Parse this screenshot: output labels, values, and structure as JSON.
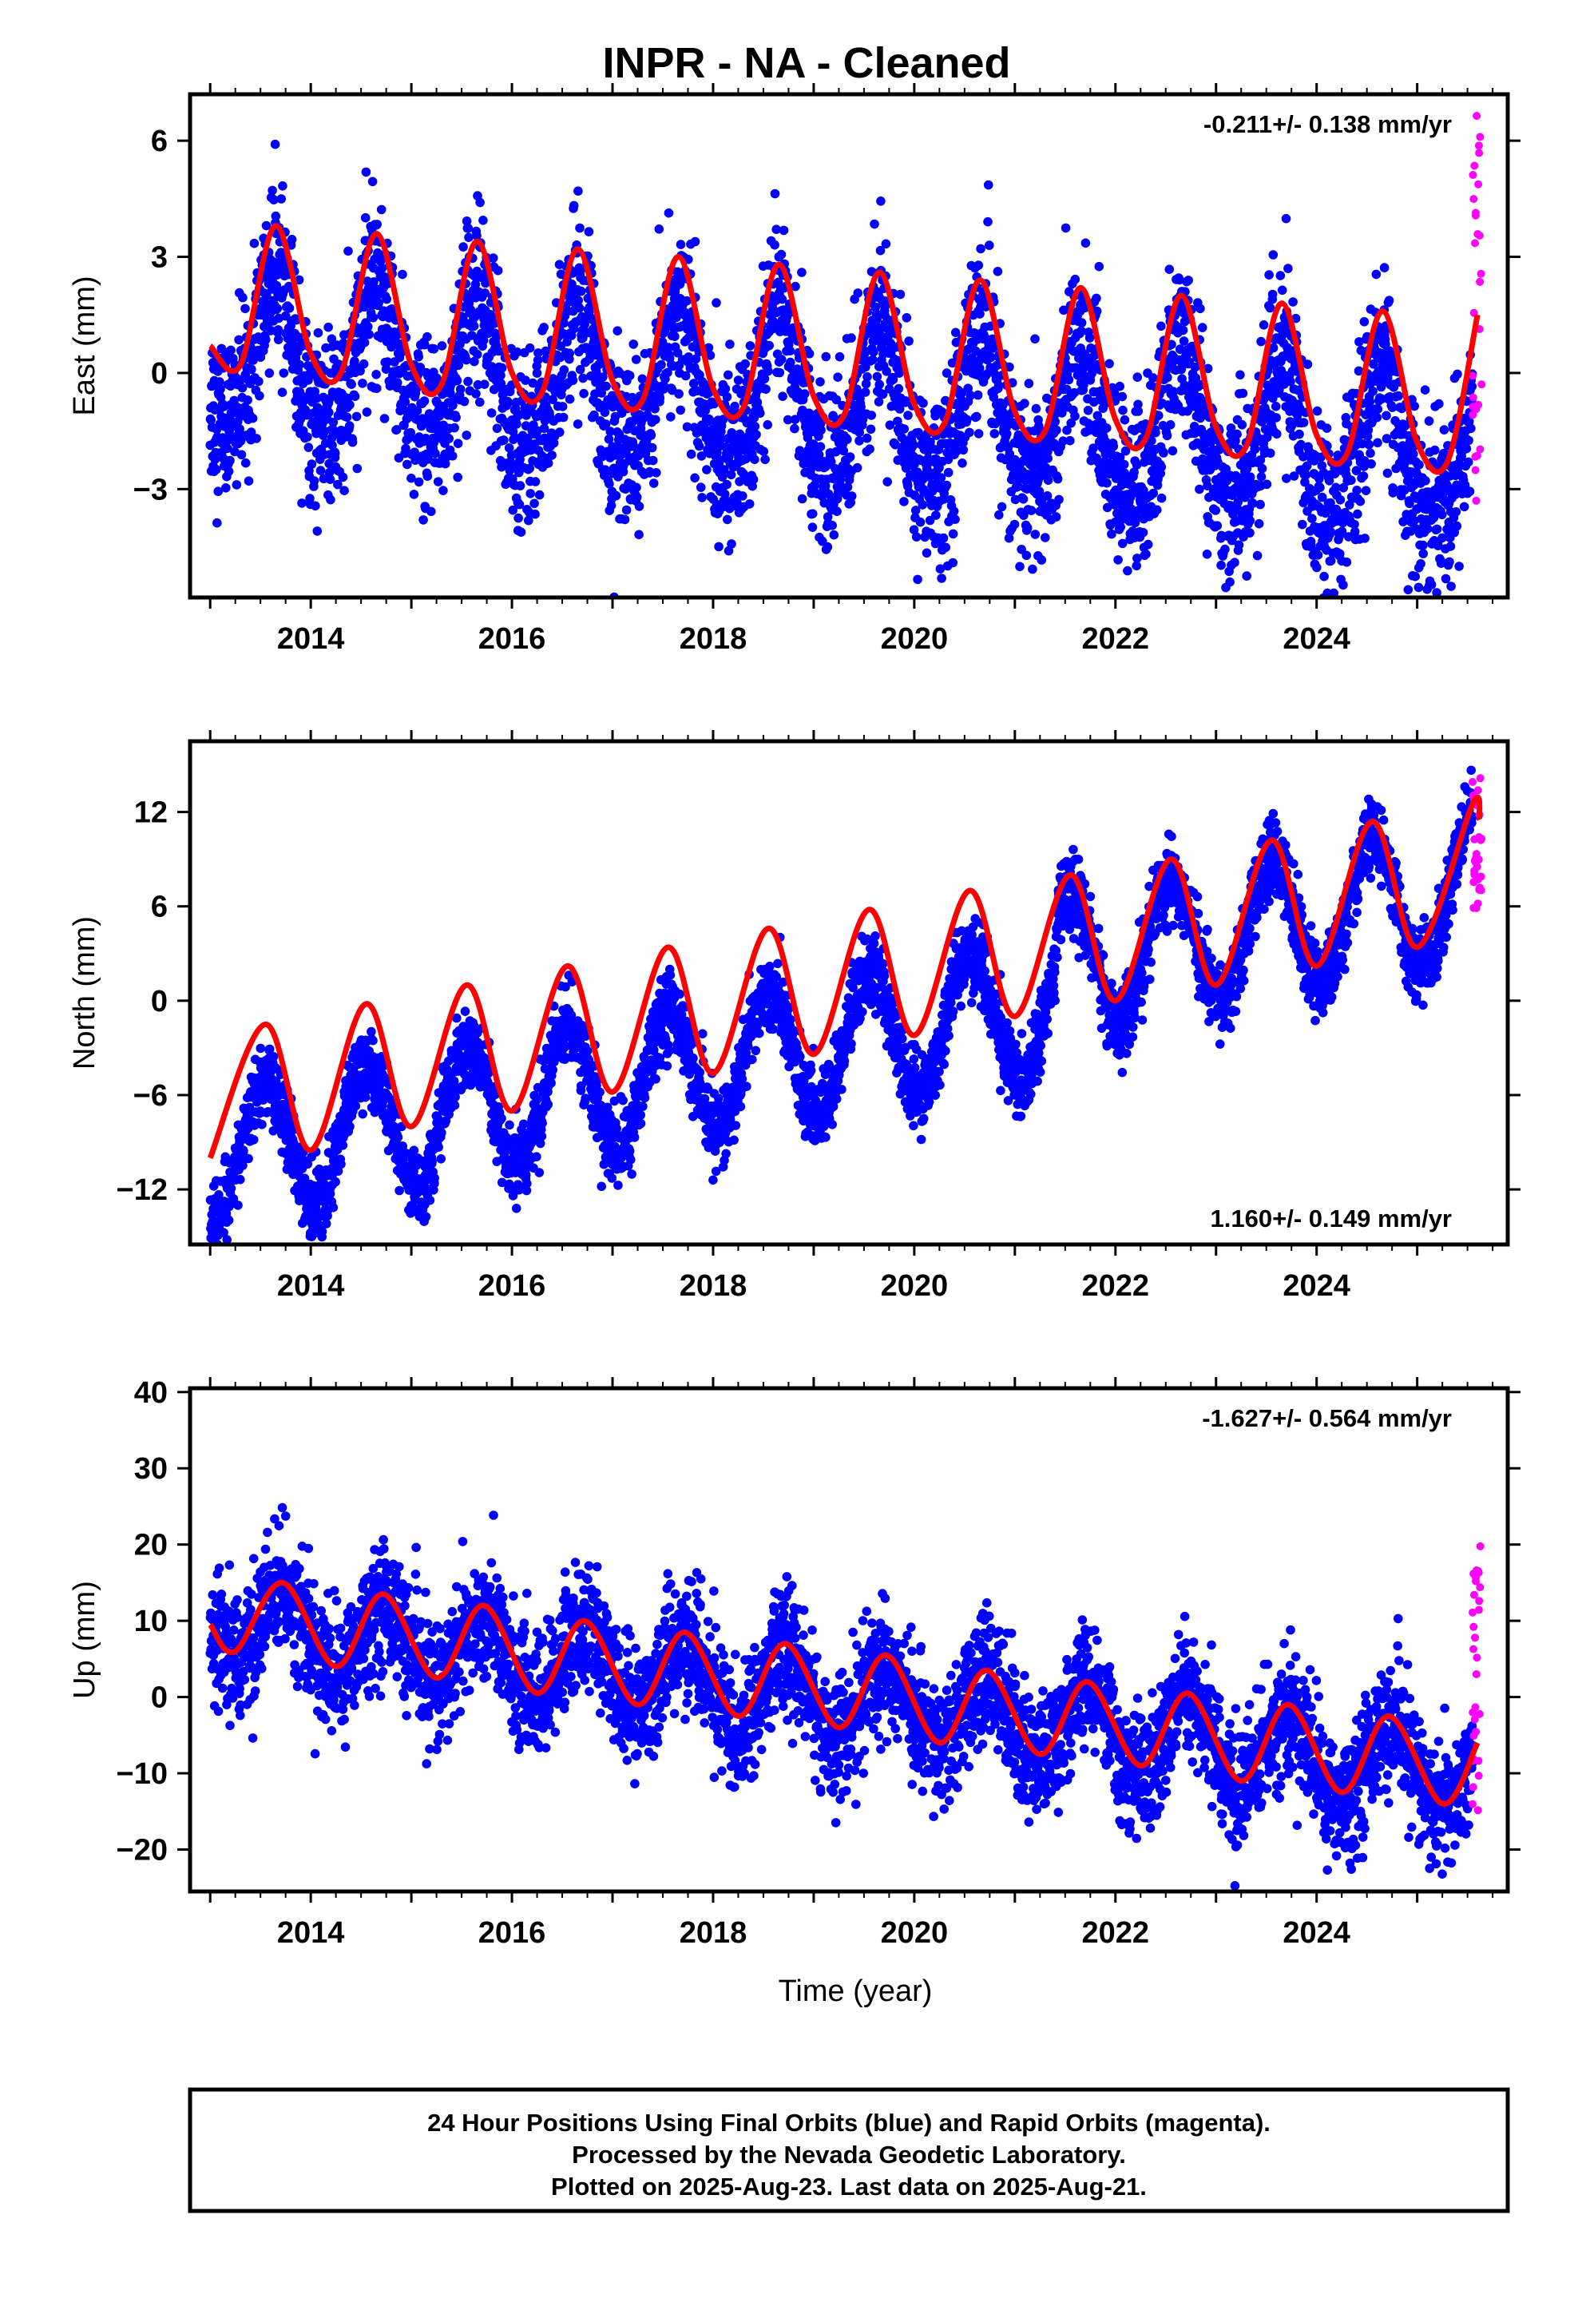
{
  "title": "INPR  - NA - Cleaned",
  "x_label": "Time (year)",
  "colors": {
    "final_orbits": "#0000ff",
    "rapid_orbits": "#ff00ff",
    "model": "#ff0000",
    "frame": "#000000"
  },
  "footer": {
    "line1": "24 Hour Positions Using Final Orbits (blue) and Rapid Orbits (magenta).",
    "line2": "Processed by the Nevada Geodetic Laboratory.",
    "line3": "Plotted on 2025-Aug-23. Last data on 2025-Aug-21."
  },
  "chart_data": [
    {
      "type": "scatter",
      "component": "East",
      "ylabel": "East (mm)",
      "xlim": [
        2012.8,
        2025.9
      ],
      "ylim": [
        -5.8,
        7.2
      ],
      "x_ticks": [
        2014,
        2016,
        2018,
        2020,
        2022,
        2024
      ],
      "y_ticks": [
        -3,
        0,
        3,
        6
      ],
      "rate_text": "-0.211+/- 0.138 mm/yr",
      "rate_position": "top-right",
      "series": [
        {
          "kind": "final_orbits",
          "x_range": [
            2013.0,
            2025.55
          ],
          "model": {
            "offset": 0.5,
            "rate": -0.211,
            "annual_amp": 1.9,
            "annual_peak": 2013.65,
            "semiannual_amp": 0.35
          },
          "scatter_std": 1.1
        },
        {
          "kind": "rapid_orbits",
          "x_range": [
            2025.55,
            2025.64
          ],
          "y_range": [
            -3.6,
            6.8
          ]
        }
      ],
      "model_line": {
        "x": [
          2013.0,
          2013.3,
          2013.65,
          2014.0,
          2014.3,
          2014.65,
          2015.0,
          2015.3,
          2015.65,
          2016.0,
          2016.3,
          2016.65,
          2017.0,
          2017.3,
          2017.65,
          2018.0,
          2018.3,
          2018.65,
          2019.0,
          2019.3,
          2019.65,
          2020.0,
          2020.3,
          2020.65,
          2021.0,
          2021.3,
          2021.65,
          2022.0,
          2022.3,
          2022.65,
          2023.0,
          2023.3,
          2023.65,
          2024.0,
          2024.3,
          2024.65,
          2025.0,
          2025.3,
          2025.6
        ],
        "y": [
          0.7,
          0.2,
          3.8,
          0.5,
          0.0,
          3.6,
          0.2,
          -0.3,
          3.4,
          0.0,
          -0.5,
          3.2,
          -0.2,
          -0.7,
          3.0,
          -0.4,
          -0.9,
          2.8,
          -0.6,
          -1.1,
          2.6,
          -0.8,
          -1.3,
          2.4,
          -1.0,
          -1.5,
          2.2,
          -1.2,
          -1.7,
          2.0,
          -1.4,
          -1.9,
          1.8,
          -1.6,
          -2.1,
          1.6,
          -1.8,
          -2.3,
          1.5
        ]
      }
    },
    {
      "type": "scatter",
      "component": "North",
      "ylabel": "North (mm)",
      "xlim": [
        2012.8,
        2025.9
      ],
      "ylim": [
        -15.5,
        16.5
      ],
      "x_ticks": [
        2014,
        2016,
        2018,
        2020,
        2022,
        2024
      ],
      "y_ticks": [
        -12,
        -6,
        0,
        6,
        12
      ],
      "rate_text": "1.160+/- 0.149 mm/yr",
      "rate_position": "bottom-right",
      "series": [
        {
          "kind": "final_orbits",
          "x_range": [
            2013.0,
            2025.55
          ],
          "model": {
            "offset": -10.0,
            "rate": 1.16,
            "annual_amp": 4.2,
            "annual_peak": 2013.55,
            "semiannual_amp": 0.0,
            "offset_jump": {
              "at": 2021.4,
              "size": 2.5
            }
          },
          "scatter_std": 1.2
        },
        {
          "kind": "rapid_orbits",
          "x_range": [
            2025.55,
            2025.64
          ],
          "y_range": [
            5.8,
            14.5
          ]
        }
      ],
      "model_line": {
        "x": [
          2013.0,
          2013.55,
          2014.0,
          2014.55,
          2015.0,
          2015.55,
          2016.0,
          2016.55,
          2017.0,
          2017.55,
          2018.0,
          2018.55,
          2019.0,
          2019.55,
          2020.0,
          2020.55,
          2021.0,
          2021.55,
          2022.0,
          2022.55,
          2023.0,
          2023.55,
          2024.0,
          2024.55,
          2025.0,
          2025.55,
          2025.62
        ],
        "y": [
          -10.0,
          -1.5,
          -9.5,
          -0.2,
          -8.0,
          1.0,
          -7.0,
          2.2,
          -5.8,
          3.4,
          -4.6,
          4.6,
          -3.4,
          5.8,
          -2.2,
          7.0,
          -1.0,
          8.0,
          0.0,
          9.0,
          1.0,
          10.2,
          2.2,
          11.4,
          3.4,
          12.5,
          11.5
        ]
      }
    },
    {
      "type": "scatter",
      "component": "Up",
      "ylabel": "Up (mm)",
      "xlim": [
        2012.8,
        2025.9
      ],
      "ylim": [
        -25.5,
        40.5
      ],
      "x_ticks": [
        2014,
        2016,
        2018,
        2020,
        2022,
        2024
      ],
      "y_ticks": [
        -20,
        -10,
        0,
        10,
        20,
        30,
        40
      ],
      "rate_text": "-1.627+/- 0.564 mm/yr",
      "rate_position": "top-right",
      "series": [
        {
          "kind": "final_orbits",
          "x_range": [
            2013.0,
            2025.55
          ],
          "model": {
            "offset": 10.0,
            "rate": -1.627,
            "annual_amp": 5.0,
            "annual_peak": 2013.72,
            "semiannual_amp": 0.0
          },
          "scatter_std": 4.0
        },
        {
          "kind": "rapid_orbits",
          "x_range": [
            2025.55,
            2025.64
          ],
          "y_range": [
            -15.0,
            21.0
          ]
        }
      ],
      "model_line": {
        "x": [
          2013.0,
          2013.25,
          2013.72,
          2014.25,
          2014.72,
          2015.25,
          2015.72,
          2016.25,
          2016.72,
          2017.25,
          2017.72,
          2018.25,
          2018.72,
          2019.25,
          2019.72,
          2020.25,
          2020.72,
          2021.25,
          2021.72,
          2022.25,
          2022.72,
          2023.25,
          2023.72,
          2024.25,
          2024.72,
          2025.25,
          2025.6
        ],
        "y": [
          9.5,
          6.0,
          15.0,
          4.0,
          13.5,
          2.5,
          12.0,
          0.5,
          10.0,
          -1.0,
          8.5,
          -2.5,
          7.0,
          -4.0,
          5.5,
          -6.0,
          3.5,
          -7.5,
          2.0,
          -9.0,
          0.5,
          -11.0,
          -1.0,
          -12.5,
          -2.5,
          -14.0,
          -6.0
        ]
      }
    }
  ]
}
